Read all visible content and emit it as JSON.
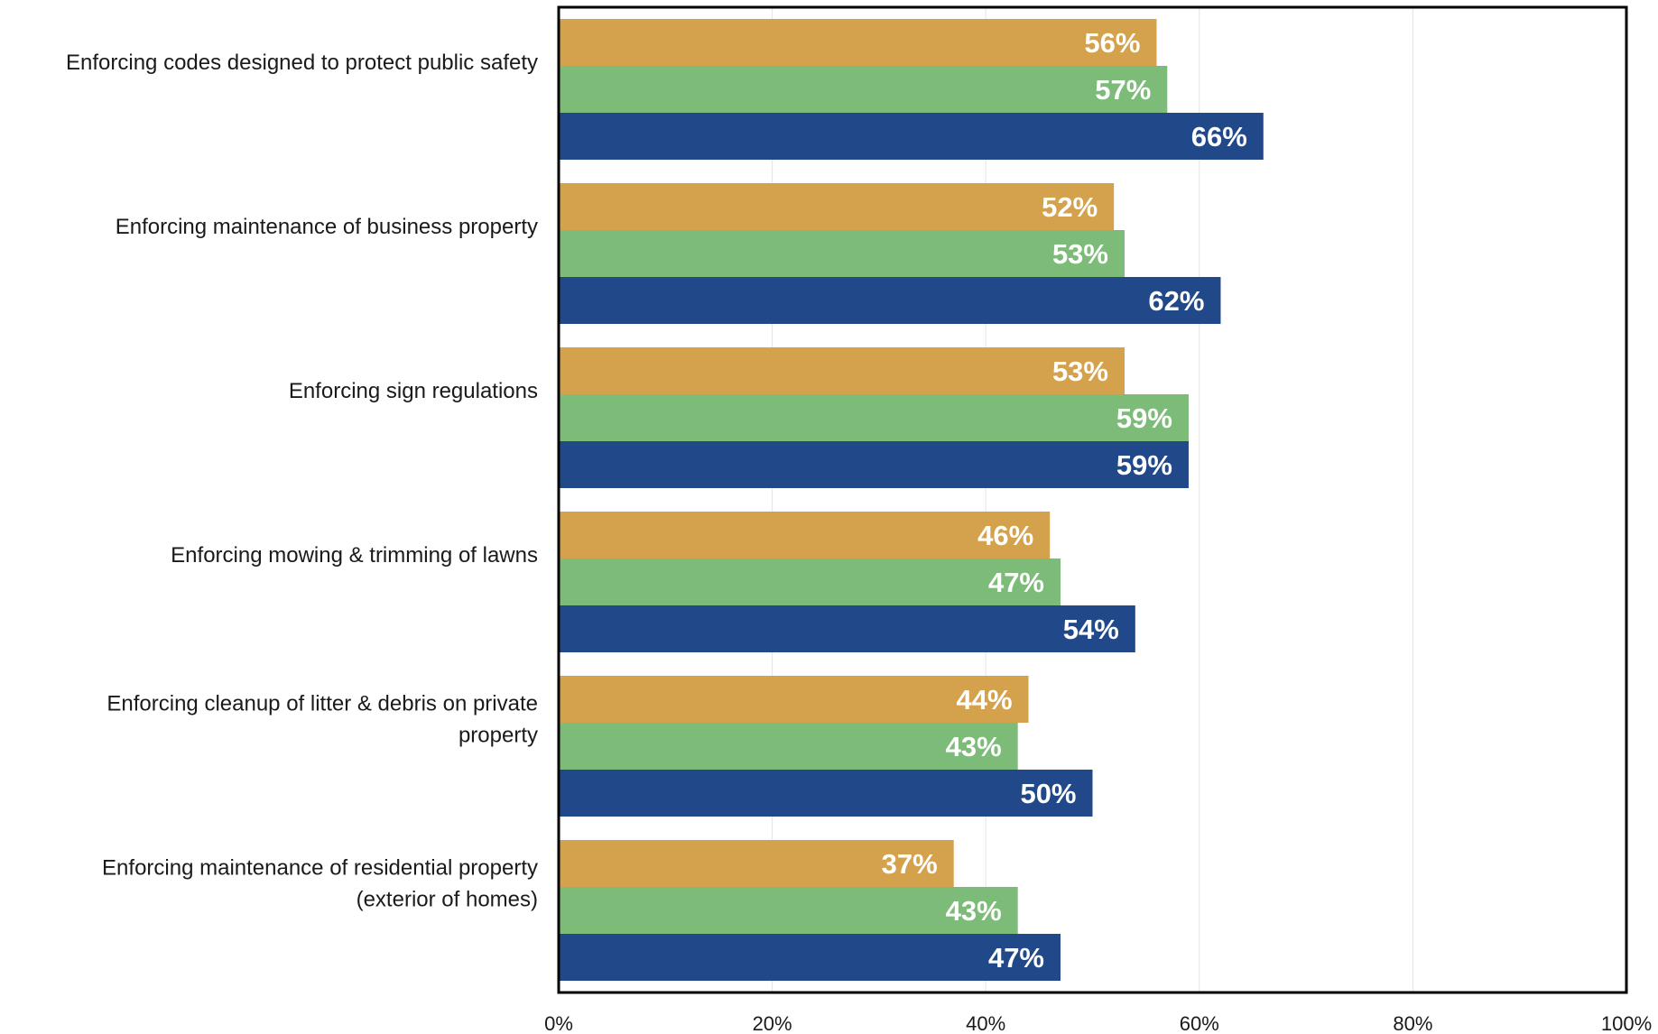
{
  "chart_data": {
    "type": "bar",
    "orientation": "horizontal",
    "title": "",
    "xlabel": "",
    "ylabel": "",
    "xlim": [
      0,
      100
    ],
    "grid": true,
    "legend": "none",
    "ticks": [
      "0%",
      "20%",
      "40%",
      "60%",
      "80%",
      "100%"
    ],
    "tick_values": [
      0,
      20,
      40,
      60,
      80,
      100
    ],
    "categories": [
      [
        "Enforcing codes designed to protect public safety"
      ],
      [
        "Enforcing maintenance of business property"
      ],
      [
        "Enforcing sign regulations"
      ],
      [
        "Enforcing mowing & trimming of lawns"
      ],
      [
        "Enforcing cleanup of litter & debris on private",
        "property"
      ],
      [
        "Enforcing maintenance of residential property",
        "(exterior of homes)"
      ]
    ],
    "series": [
      {
        "color": "#D4A24C",
        "values": [
          56,
          52,
          53,
          46,
          44,
          37
        ],
        "labels": [
          "56%",
          "52%",
          "53%",
          "46%",
          "44%",
          "37%"
        ]
      },
      {
        "color": "#7DBB79",
        "values": [
          57,
          53,
          59,
          47,
          43,
          43
        ],
        "labels": [
          "57%",
          "53%",
          "59%",
          "47%",
          "43%",
          "43%"
        ]
      },
      {
        "color": "#214888",
        "values": [
          66,
          62,
          59,
          54,
          50,
          47
        ],
        "labels": [
          "66%",
          "62%",
          "59%",
          "54%",
          "50%",
          "47%"
        ]
      }
    ]
  }
}
